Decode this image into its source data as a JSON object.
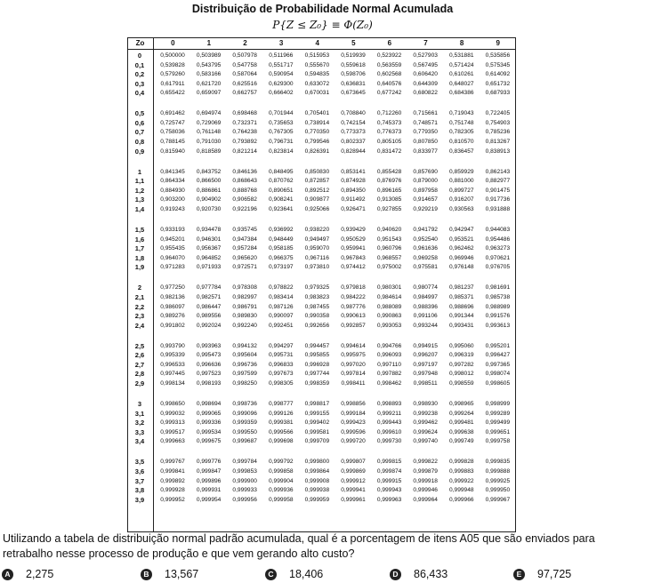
{
  "title": "Distribuição de Probabilidade Normal Acumulada",
  "formula": "P{Z ≤ Z₀} ≡ Φ(Z₀)",
  "table": {
    "corner": "Zo",
    "columns": [
      "0",
      "1",
      "2",
      "3",
      "4",
      "5",
      "6",
      "7",
      "8",
      "9"
    ],
    "rows": [
      {
        "z": "0",
        "v": [
          "0,500000",
          "0,503989",
          "0,507978",
          "0,511966",
          "0,515953",
          "0,519939",
          "0,523922",
          "0,527903",
          "0,531881",
          "0,535856"
        ]
      },
      {
        "z": "0,1",
        "v": [
          "0,539828",
          "0,543795",
          "0,547758",
          "0,551717",
          "0,555670",
          "0,559618",
          "0,563559",
          "0,567495",
          "0,571424",
          "0,575345"
        ]
      },
      {
        "z": "0,2",
        "v": [
          "0,579260",
          "0,583166",
          "0,587064",
          "0,590954",
          "0,594835",
          "0,598706",
          "0,602568",
          "0,606420",
          "0,610261",
          "0,614092"
        ]
      },
      {
        "z": "0,3",
        "v": [
          "0,617911",
          "0,621720",
          "0,625516",
          "0,629300",
          "0,633072",
          "0,636831",
          "0,640576",
          "0,644309",
          "0,648027",
          "0,651732"
        ]
      },
      {
        "z": "0,4",
        "v": [
          "0,655422",
          "0,659097",
          "0,662757",
          "0,666402",
          "0,670031",
          "0,673645",
          "0,677242",
          "0,680822",
          "0,684386",
          "0,687933"
        ]
      },
      {
        "z": "0,5",
        "v": [
          "0,691462",
          "0,694974",
          "0,698468",
          "0,701944",
          "0,705401",
          "0,708840",
          "0,712260",
          "0,715661",
          "0,719043",
          "0,722405"
        ]
      },
      {
        "z": "0,6",
        "v": [
          "0,725747",
          "0,729069",
          "0,732371",
          "0,735653",
          "0,738914",
          "0,742154",
          "0,745373",
          "0,748571",
          "0,751748",
          "0,754903"
        ]
      },
      {
        "z": "0,7",
        "v": [
          "0,758036",
          "0,761148",
          "0,764238",
          "0,767305",
          "0,770350",
          "0,773373",
          "0,776373",
          "0,779350",
          "0,782305",
          "0,785236"
        ]
      },
      {
        "z": "0,8",
        "v": [
          "0,788145",
          "0,791030",
          "0,793892",
          "0,796731",
          "0,799546",
          "0,802337",
          "0,805105",
          "0,807850",
          "0,810570",
          "0,813267"
        ]
      },
      {
        "z": "0,9",
        "v": [
          "0,815940",
          "0,818589",
          "0,821214",
          "0,823814",
          "0,826391",
          "0,828944",
          "0,831472",
          "0,833977",
          "0,836457",
          "0,838913"
        ]
      },
      {
        "z": "1",
        "v": [
          "0,841345",
          "0,843752",
          "0,846136",
          "0,848495",
          "0,850830",
          "0,853141",
          "0,855428",
          "0,857690",
          "0,859929",
          "0,862143"
        ]
      },
      {
        "z": "1,1",
        "v": [
          "0,864334",
          "0,866500",
          "0,868643",
          "0,870762",
          "0,872857",
          "0,874928",
          "0,876976",
          "0,879000",
          "0,881000",
          "0,882977"
        ]
      },
      {
        "z": "1,2",
        "v": [
          "0,884930",
          "0,886861",
          "0,888768",
          "0,890651",
          "0,892512",
          "0,894350",
          "0,896165",
          "0,897958",
          "0,899727",
          "0,901475"
        ]
      },
      {
        "z": "1,3",
        "v": [
          "0,903200",
          "0,904902",
          "0,906582",
          "0,908241",
          "0,909877",
          "0,911492",
          "0,913085",
          "0,914657",
          "0,916207",
          "0,917736"
        ]
      },
      {
        "z": "1,4",
        "v": [
          "0,919243",
          "0,920730",
          "0,922196",
          "0,923641",
          "0,925066",
          "0,926471",
          "0,927855",
          "0,929219",
          "0,930563",
          "0,931888"
        ]
      },
      {
        "z": "1,5",
        "v": [
          "0,933193",
          "0,934478",
          "0,935745",
          "0,936992",
          "0,938220",
          "0,939429",
          "0,940620",
          "0,941792",
          "0,942947",
          "0,944083"
        ]
      },
      {
        "z": "1,6",
        "v": [
          "0,945201",
          "0,946301",
          "0,947384",
          "0,948449",
          "0,949497",
          "0,950529",
          "0,951543",
          "0,952540",
          "0,953521",
          "0,954486"
        ]
      },
      {
        "z": "1,7",
        "v": [
          "0,955435",
          "0,956367",
          "0,957284",
          "0,958185",
          "0,959070",
          "0,959941",
          "0,960796",
          "0,961636",
          "0,962462",
          "0,963273"
        ]
      },
      {
        "z": "1,8",
        "v": [
          "0,964070",
          "0,964852",
          "0,965620",
          "0,966375",
          "0,967116",
          "0,967843",
          "0,968557",
          "0,969258",
          "0,969946",
          "0,970621"
        ]
      },
      {
        "z": "1,9",
        "v": [
          "0,971283",
          "0,971933",
          "0,972571",
          "0,973197",
          "0,973810",
          "0,974412",
          "0,975002",
          "0,975581",
          "0,976148",
          "0,976705"
        ]
      },
      {
        "z": "2",
        "v": [
          "0,977250",
          "0,977784",
          "0,978308",
          "0,978822",
          "0,979325",
          "0,979818",
          "0,980301",
          "0,980774",
          "0,981237",
          "0,981691"
        ]
      },
      {
        "z": "2,1",
        "v": [
          "0,982136",
          "0,982571",
          "0,982997",
          "0,983414",
          "0,983823",
          "0,984222",
          "0,984614",
          "0,984997",
          "0,985371",
          "0,985738"
        ]
      },
      {
        "z": "2,2",
        "v": [
          "0,986097",
          "0,986447",
          "0,986791",
          "0,987126",
          "0,987455",
          "0,987776",
          "0,988089",
          "0,988396",
          "0,988696",
          "0,988989"
        ]
      },
      {
        "z": "2,3",
        "v": [
          "0,989276",
          "0,989556",
          "0,989830",
          "0,990097",
          "0,990358",
          "0,990613",
          "0,990863",
          "0,991106",
          "0,991344",
          "0,991576"
        ]
      },
      {
        "z": "2,4",
        "v": [
          "0,991802",
          "0,992024",
          "0,992240",
          "0,992451",
          "0,992656",
          "0,992857",
          "0,993053",
          "0,993244",
          "0,993431",
          "0,993613"
        ]
      },
      {
        "z": "2,5",
        "v": [
          "0,993790",
          "0,993963",
          "0,994132",
          "0,994297",
          "0,994457",
          "0,994614",
          "0,994766",
          "0,994915",
          "0,995060",
          "0,995201"
        ]
      },
      {
        "z": "2,6",
        "v": [
          "0,995339",
          "0,995473",
          "0,995604",
          "0,995731",
          "0,995855",
          "0,995975",
          "0,996093",
          "0,996207",
          "0,996319",
          "0,996427"
        ]
      },
      {
        "z": "2,7",
        "v": [
          "0,996533",
          "0,996636",
          "0,996736",
          "0,996833",
          "0,996928",
          "0,997020",
          "0,997110",
          "0,997197",
          "0,997282",
          "0,997365"
        ]
      },
      {
        "z": "2,8",
        "v": [
          "0,997445",
          "0,997523",
          "0,997599",
          "0,997673",
          "0,997744",
          "0,997814",
          "0,997882",
          "0,997948",
          "0,998012",
          "0,998074"
        ]
      },
      {
        "z": "2,9",
        "v": [
          "0,998134",
          "0,998193",
          "0,998250",
          "0,998305",
          "0,998359",
          "0,998411",
          "0,998462",
          "0,998511",
          "0,998559",
          "0,998605"
        ]
      },
      {
        "z": "3",
        "v": [
          "0,998650",
          "0,998694",
          "0,998736",
          "0,998777",
          "0,998817",
          "0,998856",
          "0,998893",
          "0,998930",
          "0,998965",
          "0,998999"
        ]
      },
      {
        "z": "3,1",
        "v": [
          "0,999032",
          "0,999065",
          "0,999096",
          "0,999126",
          "0,999155",
          "0,999184",
          "0,999211",
          "0,999238",
          "0,999264",
          "0,999289"
        ]
      },
      {
        "z": "3,2",
        "v": [
          "0,999313",
          "0,999336",
          "0,999359",
          "0,999381",
          "0,999402",
          "0,999423",
          "0,999443",
          "0,999462",
          "0,999481",
          "0,999499"
        ]
      },
      {
        "z": "3,3",
        "v": [
          "0,999517",
          "0,999534",
          "0,999550",
          "0,999566",
          "0,999581",
          "0,999596",
          "0,999610",
          "0,999624",
          "0,999638",
          "0,999651"
        ]
      },
      {
        "z": "3,4",
        "v": [
          "0,999663",
          "0,999675",
          "0,999687",
          "0,999698",
          "0,999709",
          "0,999720",
          "0,999730",
          "0,999740",
          "0,999749",
          "0,999758"
        ]
      },
      {
        "z": "3,5",
        "v": [
          "0,999767",
          "0,999776",
          "0,999784",
          "0,999792",
          "0,999800",
          "0,999807",
          "0,999815",
          "0,999822",
          "0,999828",
          "0,999835"
        ]
      },
      {
        "z": "3,6",
        "v": [
          "0,999841",
          "0,999847",
          "0,999853",
          "0,999858",
          "0,999864",
          "0,999869",
          "0,999874",
          "0,999879",
          "0,999883",
          "0,999888"
        ]
      },
      {
        "z": "3,7",
        "v": [
          "0,999892",
          "0,999896",
          "0,999900",
          "0,999904",
          "0,999908",
          "0,999912",
          "0,999915",
          "0,999918",
          "0,999922",
          "0,999925"
        ]
      },
      {
        "z": "3,8",
        "v": [
          "0,999928",
          "0,999931",
          "0,999933",
          "0,999936",
          "0,999938",
          "0,999941",
          "0,999943",
          "0,999946",
          "0,999948",
          "0,999950"
        ]
      },
      {
        "z": "3,9",
        "v": [
          "0,999952",
          "0,999954",
          "0,999956",
          "0,999958",
          "0,999959",
          "0,999961",
          "0,999963",
          "0,999964",
          "0,999966",
          "0,999967"
        ]
      }
    ]
  },
  "question": "Utilizando a tabela de distribuição normal padrão acumulada, qual é a porcentagem de itens A05 que são enviados para retrabalho nesse processo de produção e que vem gerando alto custo?",
  "options": [
    {
      "letter": "A",
      "text": "2,275"
    },
    {
      "letter": "B",
      "text": "13,567"
    },
    {
      "letter": "C",
      "text": "18,406"
    },
    {
      "letter": "D",
      "text": "86,433"
    },
    {
      "letter": "E",
      "text": "97,725"
    }
  ]
}
